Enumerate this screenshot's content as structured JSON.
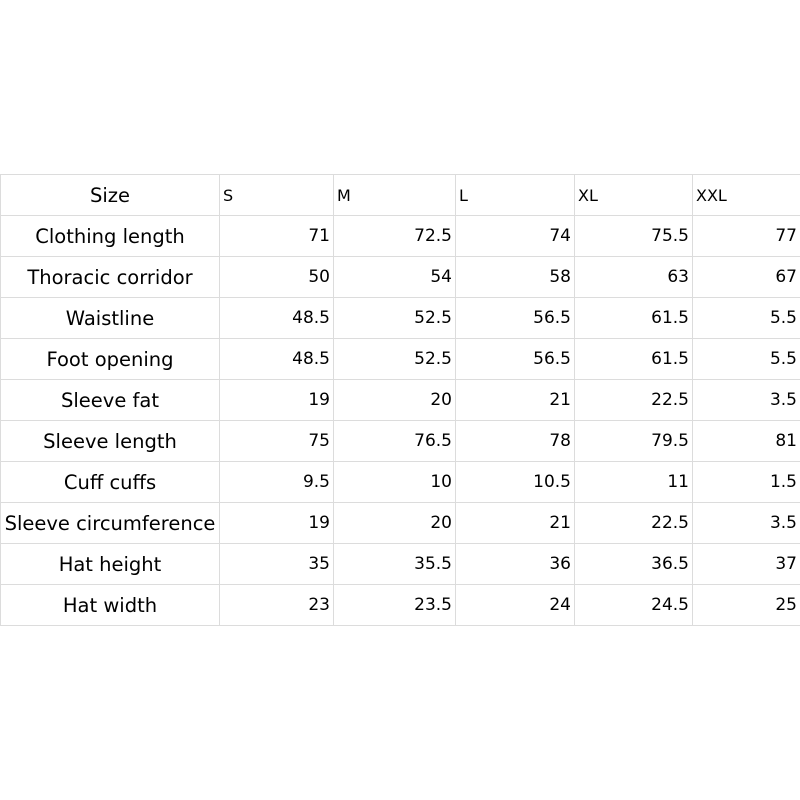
{
  "header": {
    "label": "Size",
    "sizes": [
      "S",
      "M",
      "L",
      "XL",
      "XXL"
    ]
  },
  "rows": [
    {
      "label": "Clothing length",
      "values": [
        "71",
        "72.5",
        "74",
        "75.5",
        "77"
      ]
    },
    {
      "label": "Thoracic corridor",
      "values": [
        "50",
        "54",
        "58",
        "63",
        "67"
      ]
    },
    {
      "label": "Waistline",
      "values": [
        "48.5",
        "52.5",
        "56.5",
        "61.5",
        "5.5"
      ]
    },
    {
      "label": "Foot opening",
      "values": [
        "48.5",
        "52.5",
        "56.5",
        "61.5",
        "5.5"
      ]
    },
    {
      "label": "Sleeve fat",
      "values": [
        "19",
        "20",
        "21",
        "22.5",
        "3.5"
      ]
    },
    {
      "label": "Sleeve length",
      "values": [
        "75",
        "76.5",
        "78",
        "79.5",
        "81"
      ]
    },
    {
      "label": "Cuff cuffs",
      "values": [
        "9.5",
        "10",
        "10.5",
        "11",
        "1.5"
      ]
    },
    {
      "label": "Sleeve circumference",
      "values": [
        "19",
        "20",
        "21",
        "22.5",
        "3.5"
      ]
    },
    {
      "label": "Hat height",
      "values": [
        "35",
        "35.5",
        "36",
        "36.5",
        "37"
      ]
    },
    {
      "label": "Hat width",
      "values": [
        "23",
        "23.5",
        "24",
        "24.5",
        "25"
      ]
    }
  ]
}
